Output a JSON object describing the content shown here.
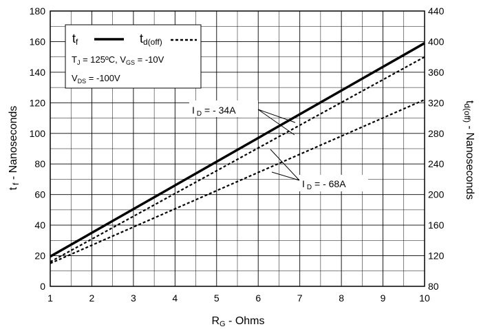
{
  "chart_data": {
    "type": "line",
    "xlabel": {
      "main": "R",
      "sub": "G",
      "rest": " - Ohms"
    },
    "ylabel_left": {
      "main": "t",
      "sub": "f",
      "rest": " - Nanoseconds"
    },
    "ylabel_right": {
      "main": "t",
      "sub": "d(off)",
      "rest": " - Nanoseconds"
    },
    "xlim": [
      1,
      10
    ],
    "ylim_left": [
      0,
      180
    ],
    "ylim_right": [
      80,
      440
    ],
    "x_ticks": [
      "1",
      "2",
      "3",
      "4",
      "5",
      "6",
      "7",
      "8",
      "9",
      "10"
    ],
    "y_left_ticks": [
      "0",
      "20",
      "40",
      "60",
      "80",
      "100",
      "120",
      "140",
      "160",
      "180"
    ],
    "y_right_ticks": [
      "80",
      "120",
      "160",
      "200",
      "240",
      "280",
      "320",
      "360",
      "400",
      "440"
    ],
    "grid": true,
    "legend": {
      "tf": {
        "main": "t",
        "sub": "f"
      },
      "tdoff": {
        "main": "t",
        "sub": "d(off)"
      },
      "cond1": {
        "tj": "T",
        "tj_sub": "J",
        "tj_val": " = 125ºC,  V",
        "vgs_sub": "GS",
        "vgs_val": " = -10V"
      },
      "cond2": {
        "v": "V",
        "vds_sub": "DS",
        "vds_val": " = -100V"
      }
    },
    "annotations": {
      "id34": {
        "main": "I",
        "sub": "D",
        "rest": " = - 34A"
      },
      "id68": {
        "main": "I",
        "sub": "D",
        "rest": " = - 68A"
      }
    },
    "series": [
      {
        "name": "t_f",
        "axis": "left",
        "style": "solid",
        "x": [
          1,
          10
        ],
        "y": [
          19.5,
          159
        ]
      },
      {
        "name": "t_d(off) I_D = -34A",
        "axis": "right",
        "style": "dashed",
        "x": [
          1,
          10
        ],
        "y": [
          112,
          380
        ]
      },
      {
        "name": "t_d(off) I_D = -68A",
        "axis": "right",
        "style": "dashed",
        "x": [
          1,
          10
        ],
        "y": [
          110,
          324
        ]
      }
    ]
  }
}
